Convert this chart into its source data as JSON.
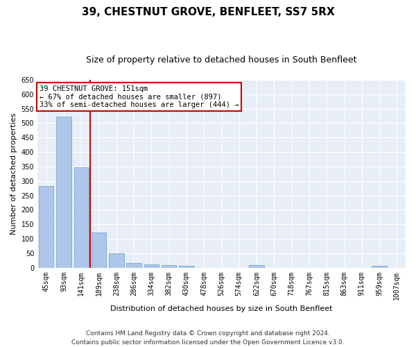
{
  "title": "39, CHESTNUT GROVE, BENFLEET, SS7 5RX",
  "subtitle": "Size of property relative to detached houses in South Benfleet",
  "xlabel": "Distribution of detached houses by size in South Benfleet",
  "ylabel": "Number of detached properties",
  "footer_line1": "Contains HM Land Registry data © Crown copyright and database right 2024.",
  "footer_line2": "Contains public sector information licensed under the Open Government Licence v3.0.",
  "annotation_line1": "39 CHESTNUT GROVE: 151sqm",
  "annotation_line2": "← 67% of detached houses are smaller (897)",
  "annotation_line3": "33% of semi-detached houses are larger (444) →",
  "bar_color": "#aec6e8",
  "bar_edge_color": "#6a9ec8",
  "vline_color": "#cc0000",
  "annotation_box_edgecolor": "#cc0000",
  "background_color": "#e8eef8",
  "grid_color": "#ffffff",
  "categories": [
    "45sqm",
    "93sqm",
    "141sqm",
    "189sqm",
    "238sqm",
    "286sqm",
    "334sqm",
    "382sqm",
    "430sqm",
    "478sqm",
    "526sqm",
    "574sqm",
    "622sqm",
    "670sqm",
    "718sqm",
    "767sqm",
    "815sqm",
    "863sqm",
    "911sqm",
    "959sqm",
    "1007sqm"
  ],
  "values": [
    283,
    522,
    347,
    122,
    49,
    17,
    11,
    10,
    6,
    0,
    0,
    0,
    8,
    0,
    0,
    0,
    0,
    0,
    0,
    6,
    0
  ],
  "vline_x_index": 2,
  "ylim": [
    0,
    650
  ],
  "yticks": [
    0,
    50,
    100,
    150,
    200,
    250,
    300,
    350,
    400,
    450,
    500,
    550,
    600,
    650
  ],
  "title_fontsize": 11,
  "subtitle_fontsize": 9,
  "ylabel_fontsize": 8,
  "xlabel_fontsize": 8,
  "tick_fontsize": 7,
  "annotation_fontsize": 7.5,
  "footer_fontsize": 6.5
}
